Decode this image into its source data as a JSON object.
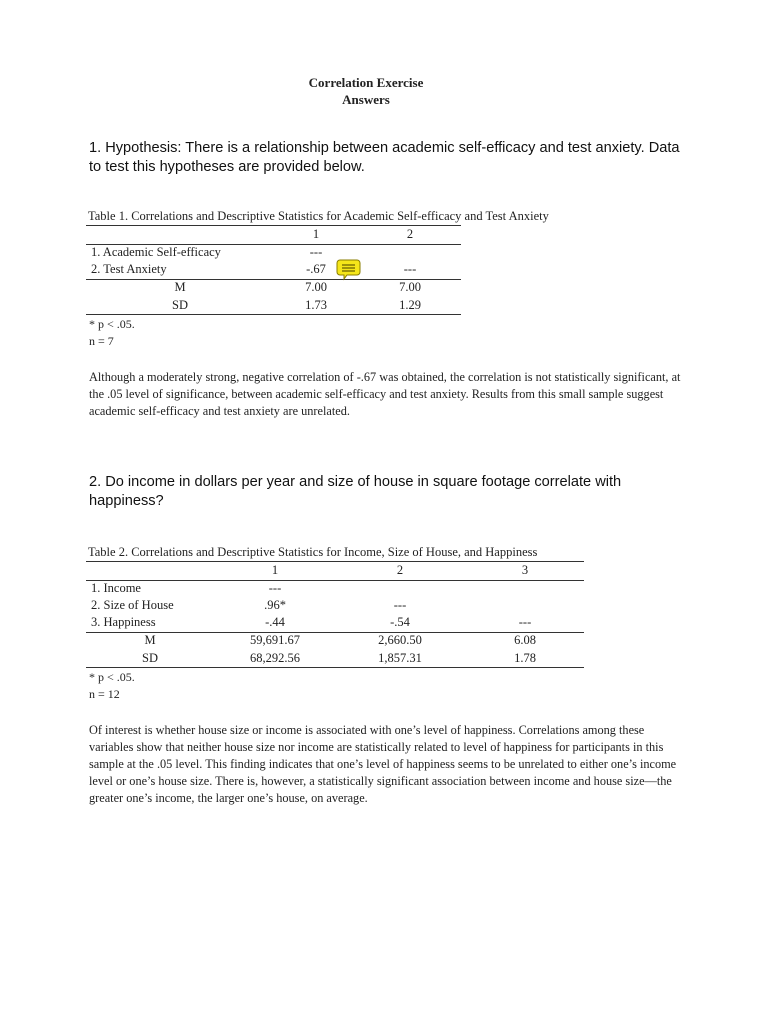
{
  "title": "Correlation Exercise",
  "subtitle": "Answers",
  "q1": {
    "heading": "1. Hypothesis: There is a relationship between academic self-efficacy and test anxiety. Data to test this hypotheses are provided below.",
    "caption": "Table 1. Correlations and Descriptive Statistics for Academic Self-efficacy and Test Anxiety",
    "columns": [
      "1",
      "2"
    ],
    "rows": [
      [
        "1. Academic Self-efficacy",
        "---",
        ""
      ],
      [
        "2. Test Anxiety",
        "-.67",
        "---"
      ],
      [
        "M",
        "7.00",
        "7.00"
      ],
      [
        "SD",
        "1.73",
        "1.29"
      ]
    ],
    "note1": "* p < .05.",
    "note2": "n = 7",
    "comment_icon": "speech-bubble-note",
    "comment_color": "#f5e61a",
    "paragraph": "Although a moderately strong, negative correlation of -.67 was obtained, the correlation is not statistically significant, at the .05 level of significance, between academic self-efficacy and test anxiety. Results from this small sample suggest academic self-efficacy and test anxiety are unrelated."
  },
  "q2": {
    "heading": "2. Do income in dollars per year and size of house in square footage correlate with happiness?",
    "caption": "Table 2. Correlations and Descriptive Statistics for Income, Size of House, and Happiness",
    "columns": [
      "1",
      "2",
      "3"
    ],
    "rows": [
      [
        "1. Income",
        "---",
        "",
        ""
      ],
      [
        "2. Size of House",
        ".96*",
        "---",
        ""
      ],
      [
        "3. Happiness",
        "-.44",
        "-.54",
        "---"
      ],
      [
        "M",
        "59,691.67",
        "2,660.50",
        "6.08"
      ],
      [
        "SD",
        "68,292.56",
        "1,857.31",
        "1.78"
      ]
    ],
    "note1": "* p < .05.",
    "note2": "n = 12",
    "paragraph": "Of interest is whether house size or income is associated with one’s level of happiness. Correlations among these variables show that neither house size nor income are statistically related to level of happiness for participants in this sample at the .05 level. This finding indicates that one’s level of happiness seems to be unrelated to either one’s income level or one’s house size. There is, however, a statistically significant association between income and house size—the greater one’s income, the larger one’s house, on average."
  }
}
